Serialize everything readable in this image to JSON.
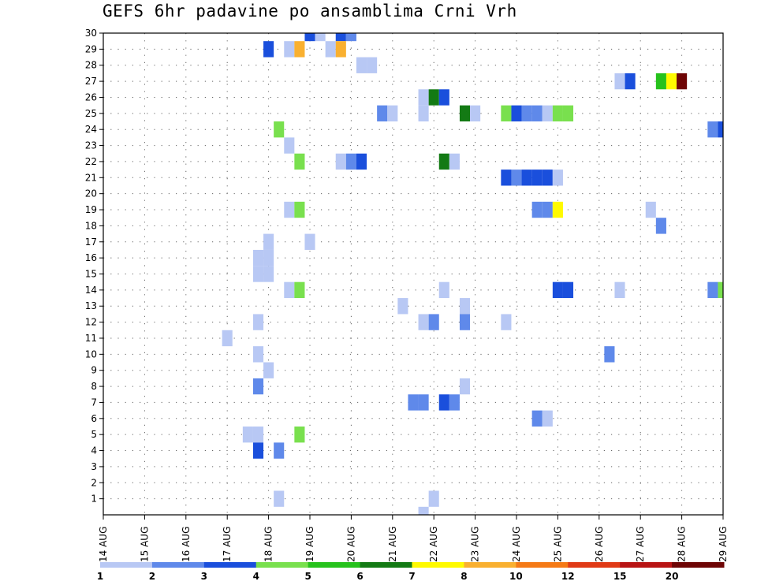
{
  "title": "GEFS 6hr padavine po ansamblima Crni Vrh",
  "chart_data": {
    "type": "heatmap",
    "title": "GEFS 6hr padavine po ansamblima Crni Vrh",
    "x_ticks": [
      "14 AUG",
      "15 AUG",
      "16 AUG",
      "17 AUG",
      "18 AUG",
      "19 AUG",
      "20 AUG",
      "21 AUG",
      "22 AUG",
      "23 AUG",
      "24 AUG",
      "25 AUG",
      "26 AUG",
      "27 AUG",
      "28 AUG",
      "29 AUG"
    ],
    "y_ticks": [
      "1",
      "2",
      "3",
      "4",
      "5",
      "6",
      "7",
      "8",
      "9",
      "10",
      "11",
      "12",
      "13",
      "14",
      "15",
      "16",
      "17",
      "18",
      "19",
      "20",
      "21",
      "22",
      "23",
      "24",
      "25",
      "26",
      "27",
      "28",
      "29",
      "30"
    ],
    "x_range_days": [
      0,
      15
    ],
    "y_range": [
      0,
      30
    ],
    "grid": true,
    "colorbar": {
      "labels": [
        "1",
        "2",
        "3",
        "4",
        "5",
        "6",
        "7",
        "8",
        "10",
        "12",
        "15",
        "20"
      ],
      "colors": [
        "#b8c8f4",
        "#5f89ea",
        "#1a4fdc",
        "#79e04e",
        "#26c21c",
        "#137a14",
        "#fffa00",
        "#f9b030",
        "#f57a16",
        "#e03a16",
        "#b81414",
        "#6e0505"
      ]
    },
    "cells": [
      {
        "d": 5.0,
        "m": 30,
        "v": 3
      },
      {
        "d": 5.25,
        "m": 30,
        "v": 1
      },
      {
        "d": 5.75,
        "m": 30,
        "v": 3
      },
      {
        "d": 6.0,
        "m": 30,
        "v": 2
      },
      {
        "d": 4.0,
        "m": 29,
        "v": 3
      },
      {
        "d": 4.5,
        "m": 29,
        "v": 1
      },
      {
        "d": 4.75,
        "m": 29,
        "v": 8
      },
      {
        "d": 5.5,
        "m": 29,
        "v": 1
      },
      {
        "d": 5.75,
        "m": 29,
        "v": 8
      },
      {
        "d": 6.25,
        "m": 28,
        "v": 1
      },
      {
        "d": 6.5,
        "m": 28,
        "v": 1
      },
      {
        "d": 12.5,
        "m": 27,
        "v": 1
      },
      {
        "d": 12.75,
        "m": 27,
        "v": 3
      },
      {
        "d": 13.5,
        "m": 27,
        "v": 5
      },
      {
        "d": 13.75,
        "m": 27,
        "v": 7
      },
      {
        "d": 14.0,
        "m": 27,
        "v": 20
      },
      {
        "d": 7.75,
        "m": 26,
        "v": 1
      },
      {
        "d": 8.0,
        "m": 26,
        "v": 6
      },
      {
        "d": 8.25,
        "m": 26,
        "v": 3
      },
      {
        "d": 6.75,
        "m": 25,
        "v": 2
      },
      {
        "d": 7.0,
        "m": 25,
        "v": 1
      },
      {
        "d": 7.75,
        "m": 25,
        "v": 1
      },
      {
        "d": 8.75,
        "m": 25,
        "v": 6
      },
      {
        "d": 9.0,
        "m": 25,
        "v": 1
      },
      {
        "d": 9.75,
        "m": 25,
        "v": 4
      },
      {
        "d": 10.0,
        "m": 25,
        "v": 3
      },
      {
        "d": 10.25,
        "m": 25,
        "v": 2
      },
      {
        "d": 10.5,
        "m": 25,
        "v": 2
      },
      {
        "d": 10.75,
        "m": 25,
        "v": 1
      },
      {
        "d": 11.0,
        "m": 25,
        "v": 4
      },
      {
        "d": 11.25,
        "m": 25,
        "v": 4
      },
      {
        "d": 4.25,
        "m": 24,
        "v": 4
      },
      {
        "d": 14.75,
        "m": 24,
        "v": 2
      },
      {
        "d": 15.0,
        "m": 24,
        "v": 3
      },
      {
        "d": 4.5,
        "m": 23,
        "v": 1
      },
      {
        "d": 4.75,
        "m": 22,
        "v": 4
      },
      {
        "d": 5.75,
        "m": 22,
        "v": 1
      },
      {
        "d": 6.0,
        "m": 22,
        "v": 2
      },
      {
        "d": 6.25,
        "m": 22,
        "v": 3
      },
      {
        "d": 8.25,
        "m": 22,
        "v": 6
      },
      {
        "d": 8.5,
        "m": 22,
        "v": 1
      },
      {
        "d": 9.75,
        "m": 21,
        "v": 3
      },
      {
        "d": 10.0,
        "m": 21,
        "v": 2
      },
      {
        "d": 10.25,
        "m": 21,
        "v": 3
      },
      {
        "d": 10.5,
        "m": 21,
        "v": 3
      },
      {
        "d": 10.75,
        "m": 21,
        "v": 3
      },
      {
        "d": 11.0,
        "m": 21,
        "v": 1
      },
      {
        "d": 4.5,
        "m": 19,
        "v": 1
      },
      {
        "d": 4.75,
        "m": 19,
        "v": 4
      },
      {
        "d": 10.5,
        "m": 19,
        "v": 2
      },
      {
        "d": 10.75,
        "m": 19,
        "v": 2
      },
      {
        "d": 11.0,
        "m": 19,
        "v": 7
      },
      {
        "d": 13.25,
        "m": 19,
        "v": 1
      },
      {
        "d": 13.5,
        "m": 18,
        "v": 2
      },
      {
        "d": 4.0,
        "m": 17,
        "v": 1
      },
      {
        "d": 5.0,
        "m": 17,
        "v": 1
      },
      {
        "d": 3.75,
        "m": 16,
        "v": 1
      },
      {
        "d": 4.0,
        "m": 16,
        "v": 1
      },
      {
        "d": 3.75,
        "m": 15,
        "v": 1
      },
      {
        "d": 4.0,
        "m": 15,
        "v": 1
      },
      {
        "d": 4.5,
        "m": 14,
        "v": 1
      },
      {
        "d": 4.75,
        "m": 14,
        "v": 4
      },
      {
        "d": 8.25,
        "m": 14,
        "v": 1
      },
      {
        "d": 11.0,
        "m": 14,
        "v": 3
      },
      {
        "d": 11.25,
        "m": 14,
        "v": 3
      },
      {
        "d": 12.5,
        "m": 14,
        "v": 1
      },
      {
        "d": 14.75,
        "m": 14,
        "v": 2
      },
      {
        "d": 15.0,
        "m": 14,
        "v": 4
      },
      {
        "d": 7.25,
        "m": 13,
        "v": 1
      },
      {
        "d": 8.75,
        "m": 13,
        "v": 1
      },
      {
        "d": 3.75,
        "m": 12,
        "v": 1
      },
      {
        "d": 7.75,
        "m": 12,
        "v": 1
      },
      {
        "d": 8.0,
        "m": 12,
        "v": 2
      },
      {
        "d": 8.75,
        "m": 12,
        "v": 2
      },
      {
        "d": 9.75,
        "m": 12,
        "v": 1
      },
      {
        "d": 3.0,
        "m": 11,
        "v": 1
      },
      {
        "d": 3.75,
        "m": 10,
        "v": 1
      },
      {
        "d": 12.25,
        "m": 10,
        "v": 2
      },
      {
        "d": 4.0,
        "m": 9,
        "v": 1
      },
      {
        "d": 3.75,
        "m": 8,
        "v": 2
      },
      {
        "d": 8.75,
        "m": 8,
        "v": 1
      },
      {
        "d": 7.5,
        "m": 7,
        "v": 2
      },
      {
        "d": 7.75,
        "m": 7,
        "v": 2
      },
      {
        "d": 8.25,
        "m": 7,
        "v": 3
      },
      {
        "d": 8.5,
        "m": 7,
        "v": 2
      },
      {
        "d": 10.5,
        "m": 6,
        "v": 2
      },
      {
        "d": 10.75,
        "m": 6,
        "v": 1
      },
      {
        "d": 3.5,
        "m": 5,
        "v": 1
      },
      {
        "d": 3.75,
        "m": 5,
        "v": 1
      },
      {
        "d": 4.75,
        "m": 5,
        "v": 4
      },
      {
        "d": 3.75,
        "m": 4,
        "v": 3
      },
      {
        "d": 4.25,
        "m": 4,
        "v": 2
      },
      {
        "d": 4.25,
        "m": 1,
        "v": 1
      },
      {
        "d": 8.0,
        "m": 1,
        "v": 1
      },
      {
        "d": 7.75,
        "m": 0,
        "v": 1
      }
    ]
  }
}
